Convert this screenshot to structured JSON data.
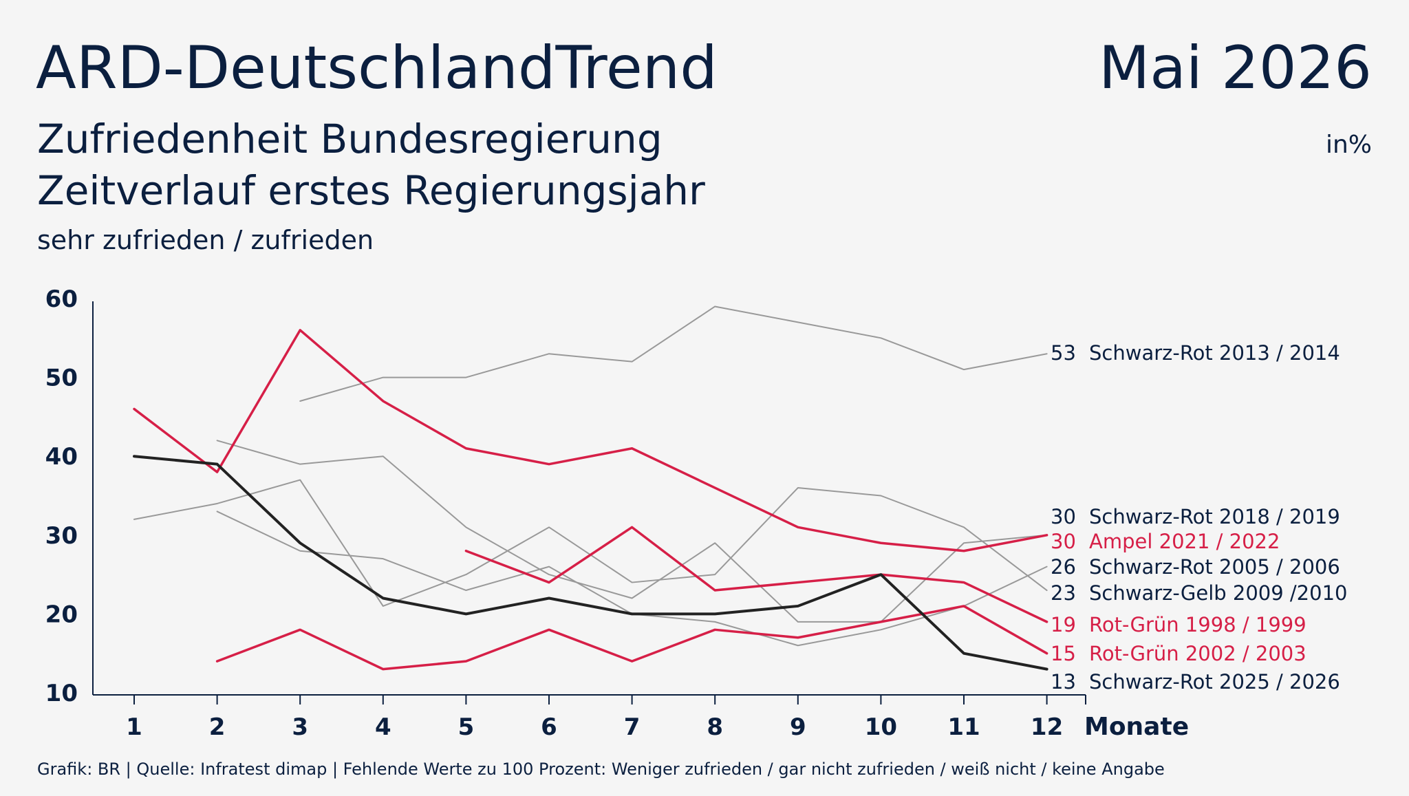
{
  "header": {
    "brand": "ARD-DeutschlandTrend",
    "date": "Mai 2026",
    "title_line1": "Zufriedenheit Bundesregierung",
    "title_line2": "Zeitverlauf erstes Regierungsjahr",
    "subtitle": "sehr zufrieden / zufrieden",
    "unit": "in%"
  },
  "footer": {
    "source": "Grafik: BR | Quelle: Infratest dimap | Fehlende Werte zu 100 Prozent: Weniger zufrieden / gar nicht zufrieden / weiß nicht / keine Angabe"
  },
  "colors": {
    "grey": "#999999",
    "red": "#d61f47",
    "black": "#222222",
    "text": "#0b1f3f"
  },
  "chart_data": {
    "type": "line",
    "x": [
      1,
      2,
      3,
      4,
      5,
      6,
      7,
      8,
      9,
      10,
      11,
      12
    ],
    "xlabel": "Monate",
    "ylabel": "",
    "ylim": [
      10,
      60
    ],
    "yticks": [
      10,
      20,
      30,
      40,
      50,
      60
    ],
    "grid": false,
    "series": [
      {
        "name": "Schwarz-Rot 2013 / 2014",
        "end_label": "53",
        "color": "grey",
        "values": [
          null,
          null,
          47,
          50,
          50,
          53,
          52,
          59,
          57,
          55,
          51,
          53
        ]
      },
      {
        "name": "Schwarz-Rot 2018 / 2019",
        "end_label": "30",
        "color": "grey",
        "values": [
          null,
          42,
          39,
          40,
          31,
          25,
          22,
          29,
          19,
          19,
          29,
          30
        ]
      },
      {
        "name": "Ampel 2021 / 2022",
        "end_label": "30",
        "color": "red",
        "values": [
          46,
          38,
          56,
          47,
          41,
          39,
          41,
          36,
          31,
          29,
          28,
          30
        ]
      },
      {
        "name": "Schwarz-Rot 2005 / 2006",
        "end_label": "26",
        "color": "grey",
        "values": [
          null,
          33,
          28,
          27,
          23,
          26,
          20,
          19,
          16,
          18,
          21,
          26
        ]
      },
      {
        "name": "Schwarz-Gelb 2009 /2010",
        "end_label": "23",
        "color": "grey",
        "values": [
          32,
          34,
          37,
          21,
          25,
          31,
          24,
          25,
          36,
          35,
          31,
          23
        ]
      },
      {
        "name": "Rot-Grün 1998 / 1999",
        "end_label": "19",
        "color": "red",
        "values": [
          null,
          null,
          null,
          null,
          28,
          24,
          31,
          23,
          24,
          25,
          24,
          19
        ]
      },
      {
        "name": "Rot-Grün 2002 / 2003",
        "end_label": "15",
        "color": "red",
        "values": [
          null,
          14,
          18,
          13,
          14,
          18,
          14,
          18,
          17,
          19,
          21,
          15
        ]
      },
      {
        "name": "Schwarz-Rot 2025 / 2026",
        "end_label": "13",
        "color": "black",
        "values": [
          40,
          39,
          29,
          22,
          20,
          22,
          20,
          20,
          21,
          25,
          15,
          13
        ]
      }
    ],
    "legend": "inline-right"
  }
}
